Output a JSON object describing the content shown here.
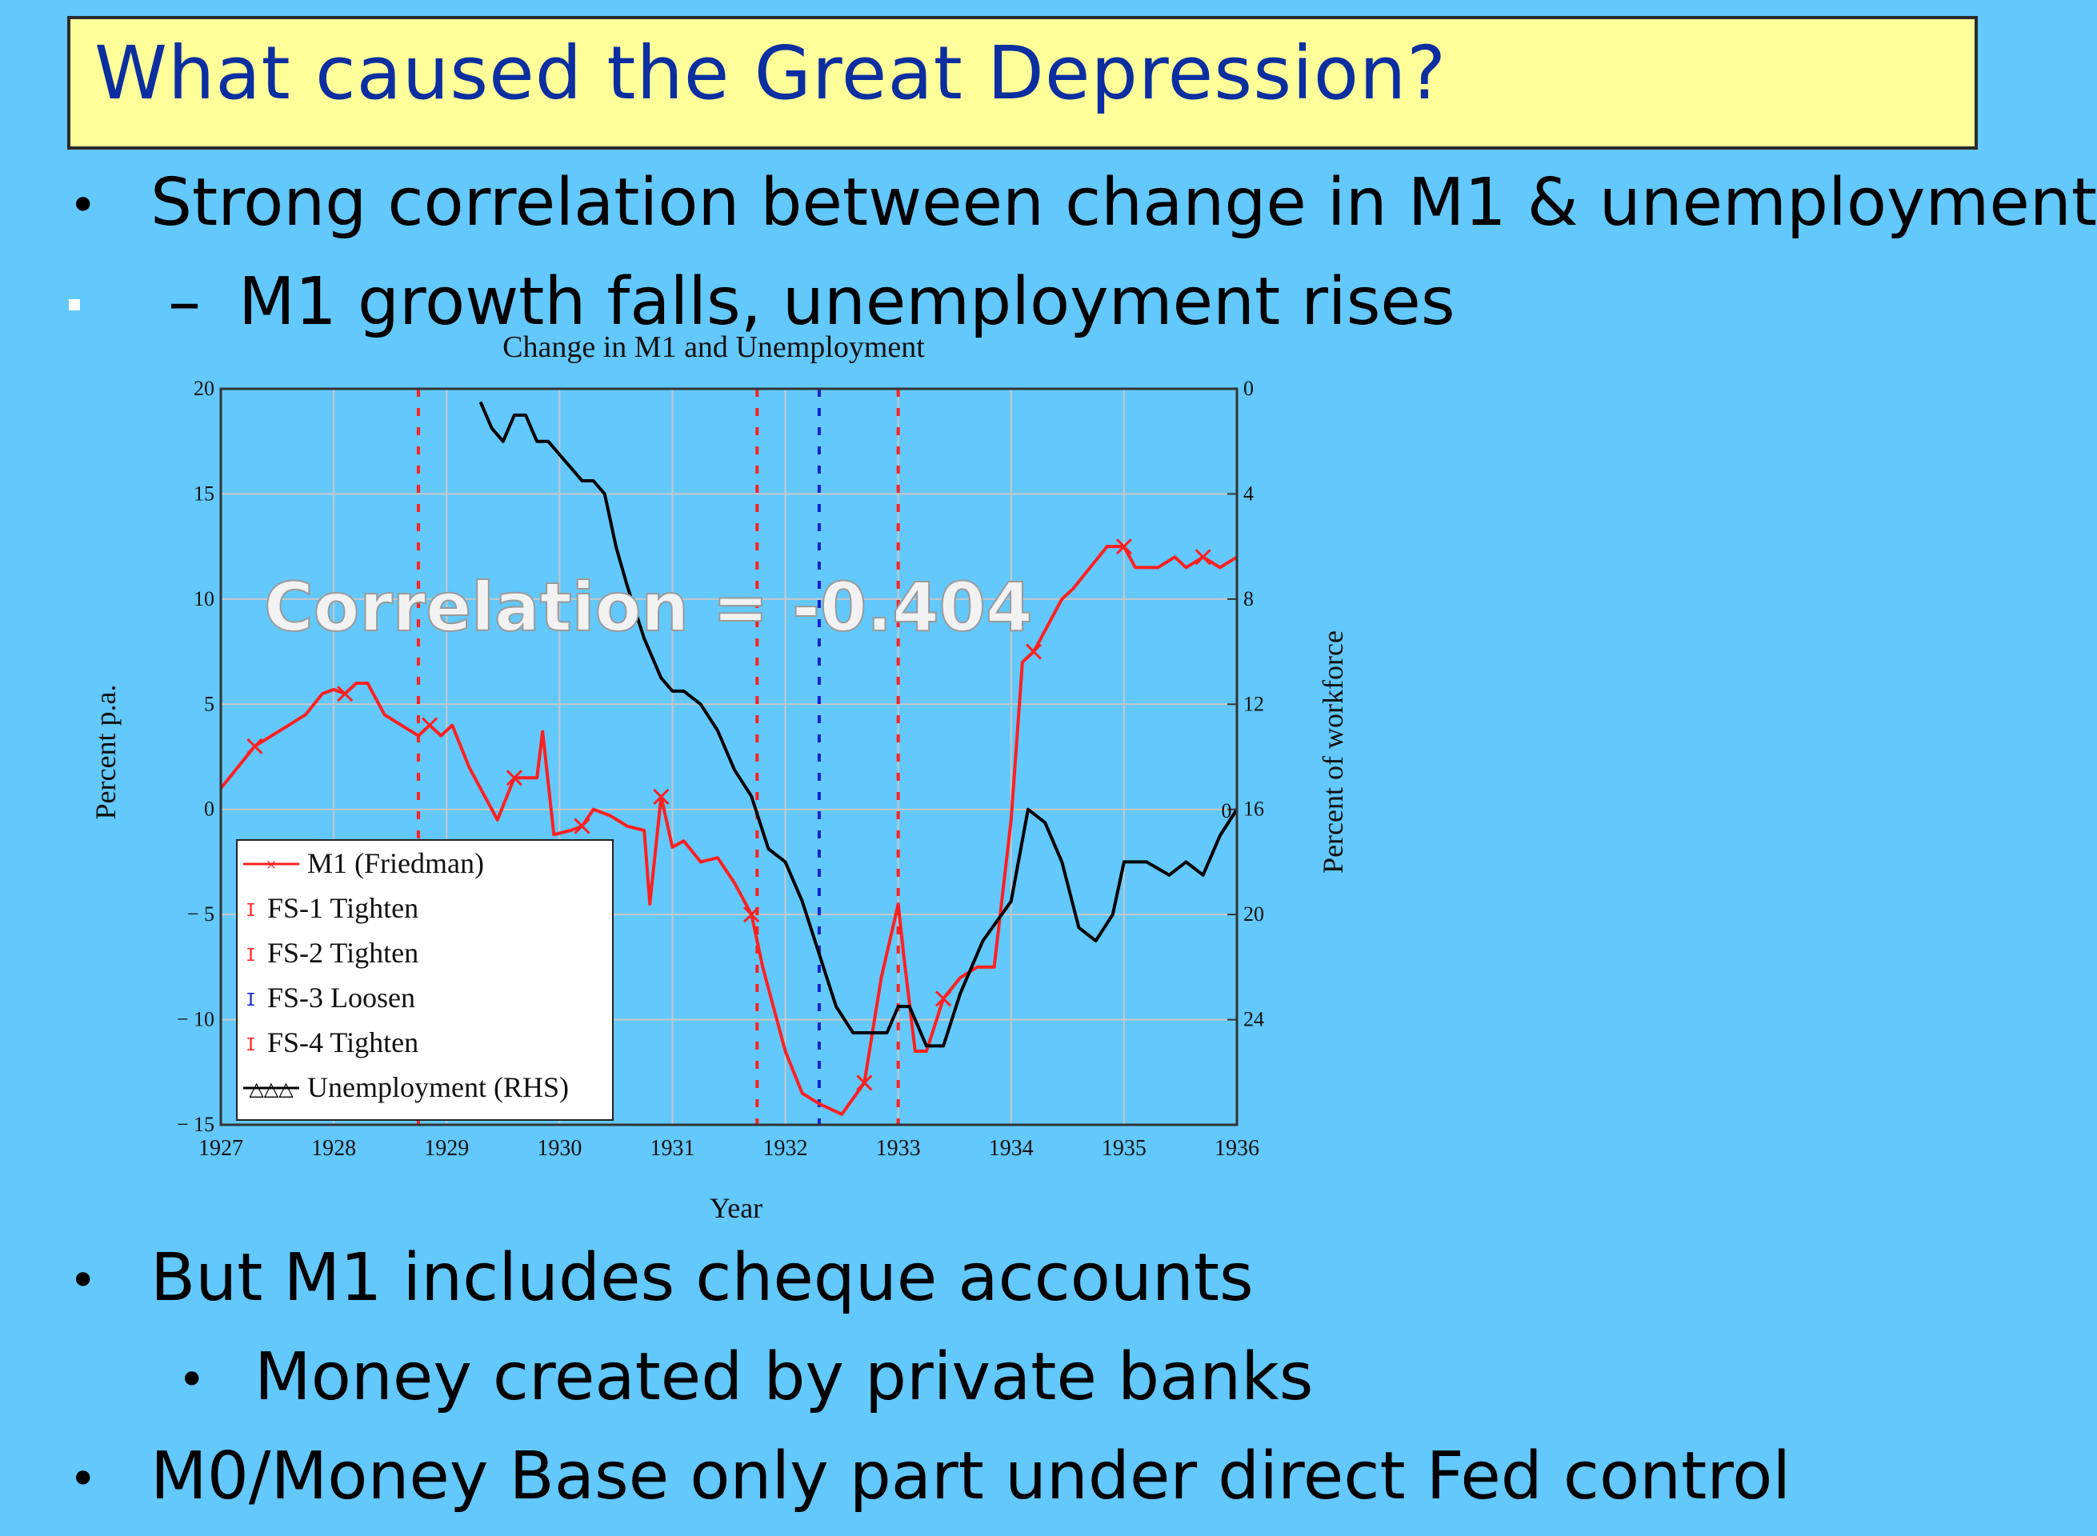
{
  "slide": {
    "title": "What caused the Great Depression?",
    "bullets": [
      {
        "bullet": "•",
        "text": "Strong correlation between change in M1 & unemployment"
      },
      {
        "bullet": "–",
        "text": "M1 growth falls, unemployment rises"
      },
      {
        "bullet": "•",
        "text": "But M1 includes cheque accounts"
      },
      {
        "bullet": "•",
        "text": "Money created by private banks"
      },
      {
        "bullet": "•",
        "text": "M0/Money Base only part under direct Fed control"
      }
    ]
  },
  "chart_data": {
    "type": "line",
    "title": "Change in M1 and Unemployment",
    "xlabel": "Year",
    "ylabel": "Percent p.a.",
    "y2label": "Percent of workforce",
    "annotation": "Correlation = -0.404",
    "xlim": [
      1927,
      1936
    ],
    "ylim": [
      -15,
      20
    ],
    "y2lim": [
      0,
      28
    ],
    "y2_inverted": true,
    "x_ticks": [
      "1927",
      "1928",
      "1929",
      "1930",
      "1931",
      "1932",
      "1933",
      "1934",
      "1935",
      "1936"
    ],
    "y_ticks": [
      "20",
      "15",
      "10",
      "5",
      "0",
      "− 5",
      "− 10",
      "− 15"
    ],
    "y2_ticks": [
      "0",
      "4",
      "8",
      "12",
      "16",
      "20",
      "24"
    ],
    "extra_label": "0",
    "grid": true,
    "legend_position": "bottom-left",
    "colors": {
      "m1": "#ff2020",
      "tighten": "#ff2020",
      "loosen": "#1020d0",
      "unemployment": "#000000",
      "grid": "#c8c8c8",
      "annotation": "#f2f2f2"
    },
    "legend": [
      {
        "label": "M1 (Friedman)",
        "marker": "×"
      },
      {
        "label": "FS-1 Tighten",
        "marker": "ⵊ"
      },
      {
        "label": "FS-2 Tighten",
        "marker": "ⵊ"
      },
      {
        "label": "FS-3 Loosen",
        "marker": "ⵊ"
      },
      {
        "label": "FS-4 Tighten",
        "marker": "ⵊ"
      },
      {
        "label": "Unemployment (RHS)",
        "marker": "△△△"
      }
    ],
    "events": [
      {
        "name": "FS-1 Tighten",
        "x": 1928.75,
        "kind": "tighten"
      },
      {
        "name": "FS-2 Tighten",
        "x": 1931.75,
        "kind": "tighten"
      },
      {
        "name": "FS-3 Loosen",
        "x": 1932.3,
        "kind": "loosen"
      },
      {
        "name": "FS-4 Tighten",
        "x": 1933.0,
        "kind": "tighten"
      }
    ],
    "series": [
      {
        "name": "M1 (Friedman)",
        "axis": "left",
        "x": [
          1927.0,
          1927.15,
          1927.3,
          1927.45,
          1927.6,
          1927.75,
          1927.9,
          1928.0,
          1928.1,
          1928.2,
          1928.3,
          1928.45,
          1928.6,
          1928.75,
          1928.85,
          1928.95,
          1929.05,
          1929.2,
          1929.3,
          1929.45,
          1929.6,
          1929.7,
          1929.8,
          1929.85,
          1929.95,
          1930.1,
          1930.2,
          1930.3,
          1930.45,
          1930.6,
          1930.75,
          1930.8,
          1930.9,
          1931.0,
          1931.1,
          1931.25,
          1931.4,
          1931.55,
          1931.7,
          1931.8,
          1932.0,
          1932.15,
          1932.3,
          1932.5,
          1932.7,
          1932.85,
          1933.0,
          1933.05,
          1933.15,
          1933.25,
          1933.4,
          1933.55,
          1933.7,
          1933.85,
          1934.0,
          1934.1,
          1934.2,
          1934.3,
          1934.45,
          1934.55,
          1934.7,
          1934.85,
          1935.0,
          1935.1,
          1935.2,
          1935.3,
          1935.45,
          1935.55,
          1935.7,
          1935.85,
          1936.0
        ],
        "y": [
          1,
          2,
          3,
          3.5,
          4,
          4.5,
          5.5,
          5.7,
          5.5,
          6,
          6,
          4.5,
          4,
          3.5,
          4,
          3.5,
          4,
          2,
          1,
          -0.5,
          1.5,
          1.5,
          1.5,
          3.7,
          -1.2,
          -1,
          -0.8,
          0,
          -0.3,
          -0.8,
          -1,
          -4.5,
          0.6,
          -1.8,
          -1.5,
          -2.5,
          -2.3,
          -3.5,
          -5,
          -7.5,
          -11.5,
          -13.5,
          -14,
          -14.5,
          -13,
          -8,
          -4.5,
          -7,
          -11.5,
          -11.5,
          -9,
          -8,
          -7.5,
          -7.5,
          -0.5,
          7,
          7.5,
          8.5,
          10,
          10.5,
          11.5,
          12.5,
          12.5,
          11.5,
          11.5,
          11.5,
          12,
          11.5,
          12,
          11.5,
          12
        ]
      },
      {
        "name": "Unemployment (RHS)",
        "axis": "right",
        "x": [
          1929.3,
          1929.4,
          1929.5,
          1929.6,
          1929.7,
          1929.8,
          1929.9,
          1930.0,
          1930.1,
          1930.2,
          1930.3,
          1930.4,
          1930.5,
          1930.6,
          1930.75,
          1930.9,
          1931.0,
          1931.1,
          1931.25,
          1931.4,
          1931.55,
          1931.7,
          1931.85,
          1932.0,
          1932.15,
          1932.3,
          1932.45,
          1932.6,
          1932.75,
          1932.9,
          1933.0,
          1933.1,
          1933.25,
          1933.4,
          1933.55,
          1933.75,
          1934.0,
          1934.15,
          1934.3,
          1934.45,
          1934.6,
          1934.75,
          1934.9,
          1935.0,
          1935.2,
          1935.4,
          1935.55,
          1935.7,
          1935.85,
          1936.0
        ],
        "y": [
          0.5,
          1.5,
          2,
          1,
          1,
          2,
          2,
          2.5,
          3,
          3.5,
          3.5,
          4,
          6,
          7.5,
          9.5,
          11,
          11.5,
          11.5,
          12,
          13,
          14.5,
          15.5,
          17.5,
          18,
          19.5,
          21.5,
          23.5,
          24.5,
          24.5,
          24.5,
          23.5,
          23.5,
          25,
          25,
          23,
          21,
          19.5,
          16,
          16.5,
          18,
          20.5,
          21,
          20,
          18,
          18,
          18.5,
          18,
          18.5,
          17,
          16
        ]
      }
    ]
  }
}
